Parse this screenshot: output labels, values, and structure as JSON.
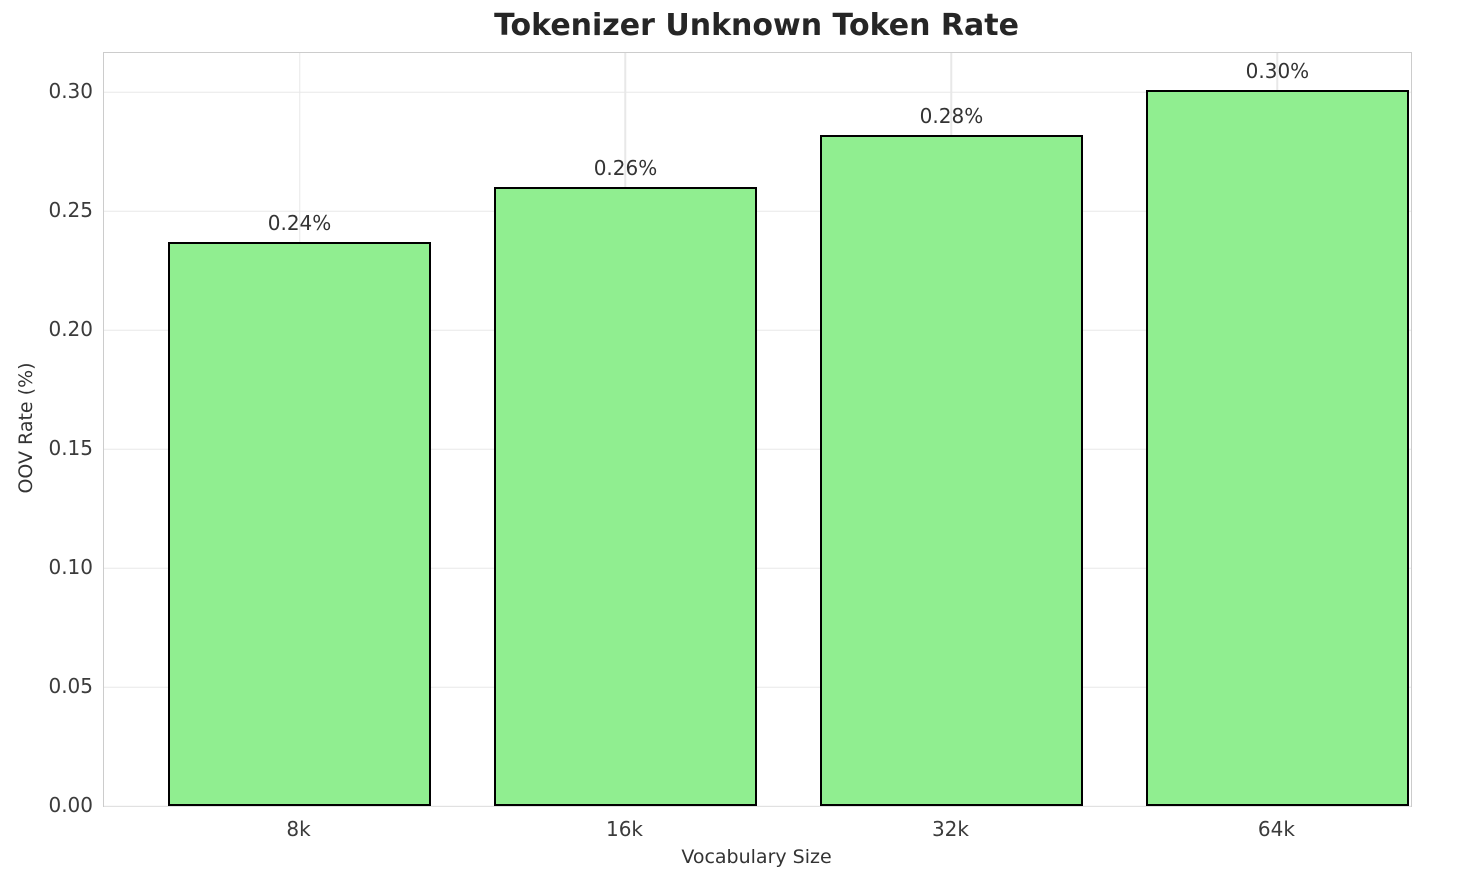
{
  "chart_data": {
    "type": "bar",
    "title": "Tokenizer Unknown Token Rate",
    "xlabel": "Vocabulary Size",
    "ylabel": "OOV Rate (%)",
    "categories": [
      "8k",
      "16k",
      "32k",
      "64k"
    ],
    "values": [
      0.237,
      0.26,
      0.282,
      0.301
    ],
    "bar_labels": [
      "0.24%",
      "0.26%",
      "0.28%",
      "0.30%"
    ],
    "yticks": [
      0.0,
      0.05,
      0.1,
      0.15,
      0.2,
      0.25,
      0.3
    ],
    "ytick_labels": [
      "0.00",
      "0.05",
      "0.10",
      "0.15",
      "0.20",
      "0.25",
      "0.30"
    ],
    "ylim": [
      0,
      0.3164
    ],
    "grid": "both",
    "legend": "none",
    "bar_color": "#90EE90",
    "bar_edge_color": "#000000",
    "grid_color": "#e8e8e8",
    "spine_color": "#cccccc",
    "tick_text_color": "#3b3b3b",
    "title_color": "#262626"
  }
}
